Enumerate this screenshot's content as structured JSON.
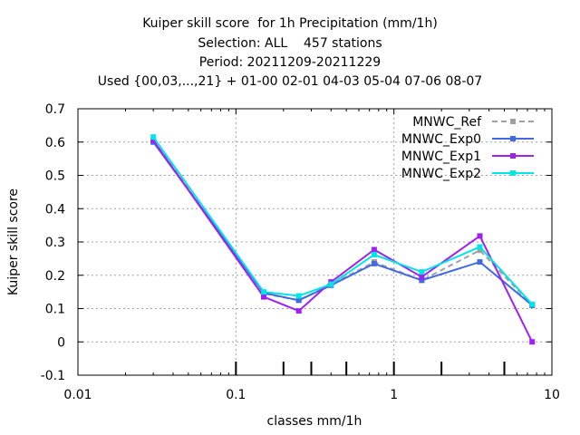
{
  "chart_data": {
    "type": "line",
    "title_lines": [
      "Kuiper skill score  for 1h Precipitation (mm/1h)",
      "Selection: ALL    457 stations",
      "Period: 20211209-20211229",
      "Used {00,03,...,21} + 01-00 02-01 04-03 05-04 07-06 08-07"
    ],
    "xlabel": "classes mm/1h",
    "ylabel": "Kuiper skill score",
    "x_scale": "log",
    "xlim": [
      0.01,
      10
    ],
    "ylim": [
      -0.1,
      0.7
    ],
    "x_ticks": [
      0.01,
      0.1,
      1,
      10
    ],
    "x_tick_labels": [
      "0.01",
      "0.1",
      "1",
      "10"
    ],
    "y_ticks": [
      -0.1,
      0,
      0.1,
      0.2,
      0.3,
      0.4,
      0.5,
      0.6,
      0.7
    ],
    "y_tick_labels": [
      "-0.1",
      "0",
      "0.1",
      "0.2",
      "0.3",
      "0.4",
      "0.5",
      "0.6",
      "0.7"
    ],
    "class_markers": [
      0.1,
      0.2,
      0.3,
      0.5,
      1,
      2,
      5
    ],
    "grid": true,
    "legend_position": "top-right",
    "x": [
      0.03,
      0.15,
      0.25,
      0.4,
      0.75,
      1.5,
      3.5,
      7.5
    ],
    "series": [
      {
        "name": "MNWC_Ref",
        "color": "#a0a0a0",
        "dashed": true,
        "values": [
          0.605,
          0.145,
          0.125,
          0.172,
          0.24,
          0.185,
          0.275,
          0.11
        ]
      },
      {
        "name": "MNWC_Exp0",
        "color": "#4169e1",
        "dashed": false,
        "values": [
          0.6,
          0.147,
          0.125,
          0.17,
          0.235,
          0.185,
          0.24,
          0.11
        ]
      },
      {
        "name": "MNWC_Exp1",
        "color": "#a020f0",
        "dashed": false,
        "values": [
          0.605,
          0.135,
          0.093,
          0.18,
          0.277,
          0.195,
          0.318,
          0.0
        ]
      },
      {
        "name": "MNWC_Exp2",
        "color": "#00e5e5",
        "dashed": false,
        "values": [
          0.615,
          0.15,
          0.138,
          0.173,
          0.262,
          0.21,
          0.285,
          0.113
        ]
      }
    ]
  }
}
